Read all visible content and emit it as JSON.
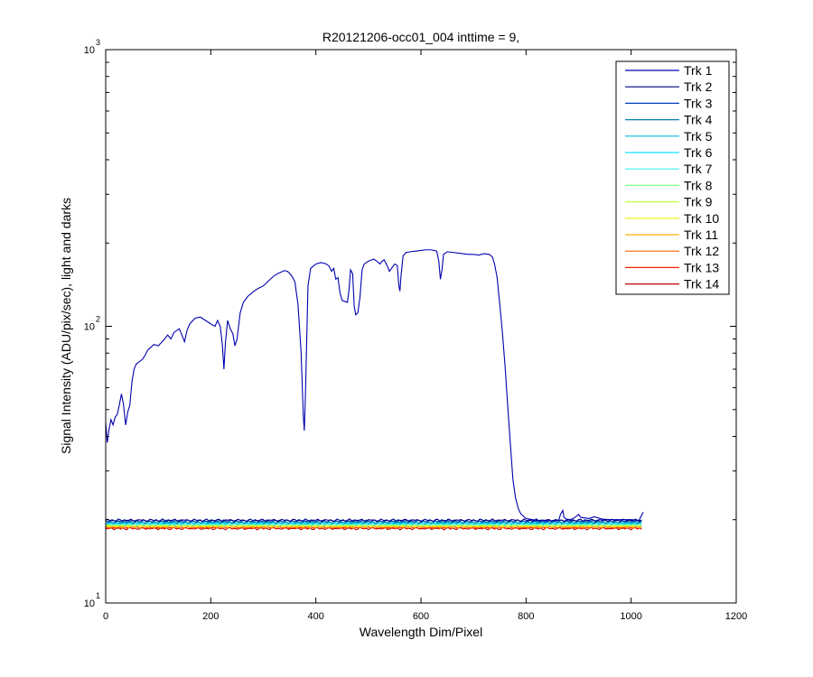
{
  "chart_data": {
    "type": "line",
    "title": "R20121206-occ01_004 inttime = 9,",
    "xlabel": "Wavelength Dim/Pixel",
    "ylabel": "Signal Intensity (ADU/pix/sec), light and darks",
    "xlim": [
      0,
      1200
    ],
    "ylim": [
      10,
      1000
    ],
    "yscale": "log",
    "grid": false,
    "legend_position": "top-right",
    "x_ticks": [
      0,
      200,
      400,
      600,
      800,
      1000,
      1200
    ],
    "x_tick_labels": [
      "0",
      "200",
      "400",
      "600",
      "800",
      "1000",
      "1200"
    ],
    "y_ticks": [
      {
        "value": 10,
        "base": "10",
        "exp": "1"
      },
      {
        "value": 100,
        "base": "10",
        "exp": "2"
      },
      {
        "value": 1000,
        "base": "10",
        "exp": "3"
      }
    ],
    "series": [
      {
        "name": "Trk 1",
        "color": "#0000b0",
        "points": [
          [
            0,
            45
          ],
          [
            3,
            38
          ],
          [
            6,
            42
          ],
          [
            10,
            46
          ],
          [
            14,
            44
          ],
          [
            18,
            47
          ],
          [
            22,
            48
          ],
          [
            26,
            52
          ],
          [
            30,
            57
          ],
          [
            34,
            52
          ],
          [
            38,
            44
          ],
          [
            42,
            49
          ],
          [
            46,
            52
          ],
          [
            50,
            63
          ],
          [
            54,
            70
          ],
          [
            58,
            73
          ],
          [
            62,
            74
          ],
          [
            66,
            75
          ],
          [
            70,
            76
          ],
          [
            74,
            78
          ],
          [
            80,
            82
          ],
          [
            86,
            84
          ],
          [
            92,
            86
          ],
          [
            100,
            85
          ],
          [
            110,
            89
          ],
          [
            118,
            93
          ],
          [
            124,
            90
          ],
          [
            130,
            95
          ],
          [
            140,
            98
          ],
          [
            146,
            92
          ],
          [
            150,
            88
          ],
          [
            155,
            97
          ],
          [
            160,
            102
          ],
          [
            170,
            107
          ],
          [
            180,
            108
          ],
          [
            190,
            105
          ],
          [
            200,
            102
          ],
          [
            208,
            100
          ],
          [
            213,
            105
          ],
          [
            218,
            100
          ],
          [
            222,
            86
          ],
          [
            225,
            70
          ],
          [
            228,
            88
          ],
          [
            232,
            105
          ],
          [
            237,
            98
          ],
          [
            242,
            94
          ],
          [
            246,
            85
          ],
          [
            250,
            90
          ],
          [
            256,
            112
          ],
          [
            262,
            122
          ],
          [
            270,
            128
          ],
          [
            280,
            133
          ],
          [
            290,
            137
          ],
          [
            300,
            140
          ],
          [
            310,
            146
          ],
          [
            320,
            152
          ],
          [
            330,
            156
          ],
          [
            340,
            159
          ],
          [
            346,
            158
          ],
          [
            352,
            154
          ],
          [
            356,
            150
          ],
          [
            360,
            145
          ],
          [
            366,
            120
          ],
          [
            372,
            80
          ],
          [
            374,
            62
          ],
          [
            376,
            48
          ],
          [
            378,
            42
          ],
          [
            380,
            55
          ],
          [
            382,
            80
          ],
          [
            385,
            140
          ],
          [
            390,
            162
          ],
          [
            400,
            168
          ],
          [
            410,
            170
          ],
          [
            420,
            168
          ],
          [
            425,
            165
          ],
          [
            430,
            158
          ],
          [
            434,
            162
          ],
          [
            438,
            148
          ],
          [
            442,
            150
          ],
          [
            446,
            132
          ],
          [
            450,
            124
          ],
          [
            455,
            123
          ],
          [
            460,
            122
          ],
          [
            463,
            135
          ],
          [
            466,
            160
          ],
          [
            470,
            155
          ],
          [
            473,
            118
          ],
          [
            476,
            110
          ],
          [
            480,
            112
          ],
          [
            484,
            128
          ],
          [
            488,
            160
          ],
          [
            492,
            168
          ],
          [
            500,
            172
          ],
          [
            510,
            175
          ],
          [
            516,
            172
          ],
          [
            522,
            168
          ],
          [
            526,
            172
          ],
          [
            530,
            174
          ],
          [
            536,
            165
          ],
          [
            540,
            158
          ],
          [
            546,
            164
          ],
          [
            550,
            168
          ],
          [
            555,
            166
          ],
          [
            558,
            140
          ],
          [
            560,
            134
          ],
          [
            562,
            152
          ],
          [
            566,
            180
          ],
          [
            572,
            185
          ],
          [
            580,
            186
          ],
          [
            590,
            187
          ],
          [
            600,
            188
          ],
          [
            610,
            189
          ],
          [
            620,
            189
          ],
          [
            630,
            187
          ],
          [
            634,
            172
          ],
          [
            637,
            148
          ],
          [
            640,
            160
          ],
          [
            643,
            182
          ],
          [
            650,
            186
          ],
          [
            660,
            185
          ],
          [
            670,
            184
          ],
          [
            680,
            183
          ],
          [
            690,
            182
          ],
          [
            700,
            182
          ],
          [
            710,
            181
          ],
          [
            720,
            183
          ],
          [
            730,
            182
          ],
          [
            736,
            178
          ],
          [
            740,
            168
          ],
          [
            745,
            150
          ],
          [
            750,
            120
          ],
          [
            755,
            95
          ],
          [
            760,
            72
          ],
          [
            765,
            52
          ],
          [
            770,
            38
          ],
          [
            775,
            28
          ],
          [
            780,
            24
          ],
          [
            785,
            22
          ],
          [
            790,
            21
          ],
          [
            800,
            20.2
          ],
          [
            820,
            19.9
          ],
          [
            850,
            19.8
          ],
          [
            862,
            19.9
          ],
          [
            866,
            21
          ],
          [
            870,
            21.6
          ],
          [
            872,
            20.4
          ],
          [
            880,
            19.9
          ],
          [
            890,
            20.2
          ],
          [
            896,
            20.6
          ],
          [
            900,
            20.9
          ],
          [
            904,
            20.4
          ],
          [
            920,
            20.2
          ],
          [
            930,
            20.5
          ],
          [
            945,
            20.1
          ],
          [
            960,
            20.0
          ],
          [
            980,
            20.0
          ],
          [
            1000,
            20.0
          ],
          [
            1015,
            19.9
          ],
          [
            1023,
            21.3
          ]
        ]
      },
      {
        "name": "Trk 2",
        "color": "#000080",
        "constant": 19.9
      },
      {
        "name": "Trk 3",
        "color": "#0040c0",
        "constant": 19.8
      },
      {
        "name": "Trk 4",
        "color": "#007fa8",
        "constant": 19.6
      },
      {
        "name": "Trk 5",
        "color": "#00c0e0",
        "constant": 19.5
      },
      {
        "name": "Trk 6",
        "color": "#10e0ff",
        "constant": 19.4
      },
      {
        "name": "Trk 7",
        "color": "#40f0f0",
        "constant": 19.3
      },
      {
        "name": "Trk 8",
        "color": "#80ff80",
        "constant": 19.2
      },
      {
        "name": "Trk 9",
        "color": "#c0ff40",
        "constant": 19.1
      },
      {
        "name": "Trk 10",
        "color": "#f0f000",
        "constant": 19.0
      },
      {
        "name": "Trk 11",
        "color": "#ffb000",
        "constant": 18.9
      },
      {
        "name": "Trk 12",
        "color": "#ff6000",
        "constant": 18.8
      },
      {
        "name": "Trk 13",
        "color": "#f02000",
        "constant": 18.7
      },
      {
        "name": "Trk 14",
        "color": "#c00000",
        "constant": 18.6
      }
    ],
    "dark_x_range": [
      0,
      1023
    ]
  }
}
